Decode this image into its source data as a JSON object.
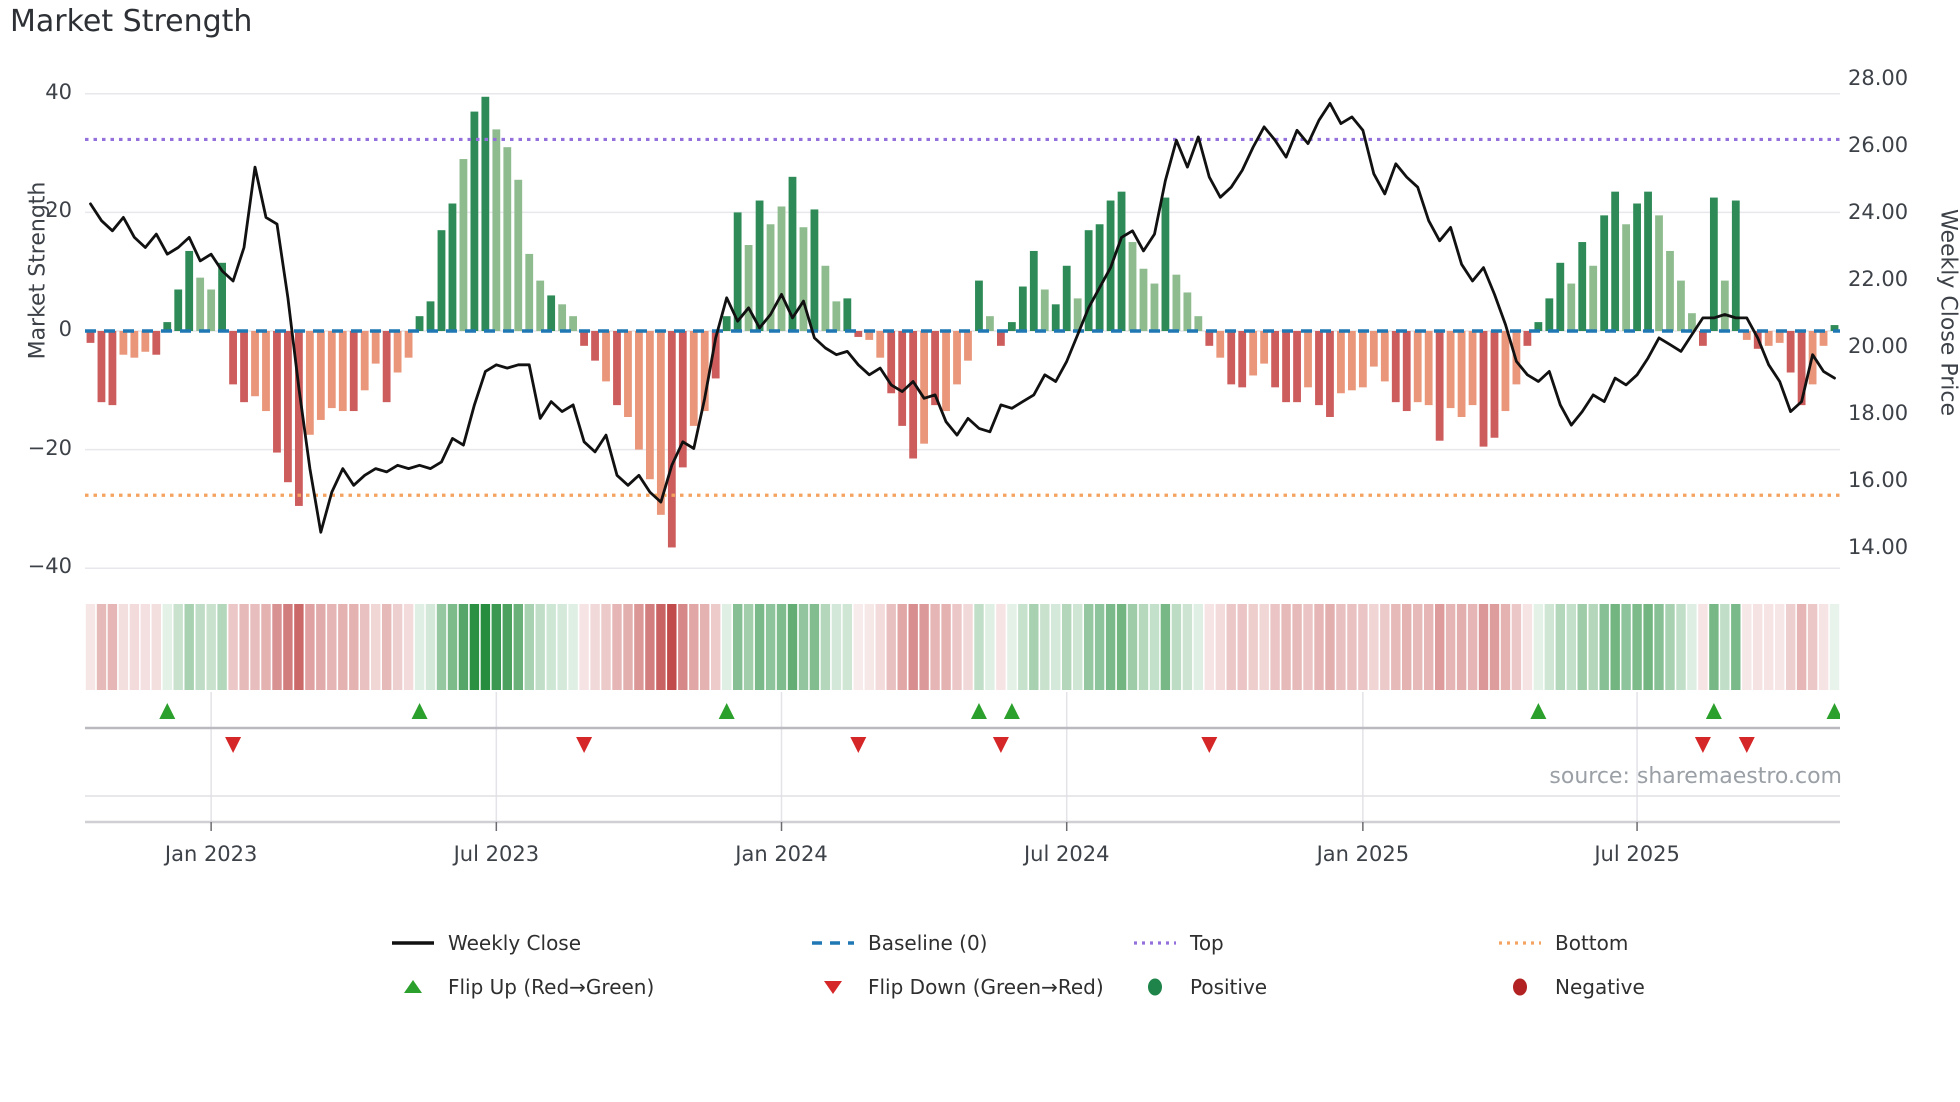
{
  "title": "Market Strength",
  "source_note": "source: sharemaestro.com",
  "y_axis_left": {
    "label": "Market Strength",
    "ticks": [
      "40",
      "20",
      "0",
      "−20",
      "−40"
    ]
  },
  "y_axis_right": {
    "label": "Weekly Close Price",
    "ticks": [
      "28.00",
      "26.00",
      "24.00",
      "22.00",
      "20.00",
      "18.00",
      "16.00",
      "14.00"
    ]
  },
  "x_axis": {
    "ticks": [
      {
        "label": "Jan 2023",
        "week": 11
      },
      {
        "label": "Jul 2023",
        "week": 37
      },
      {
        "label": "Jan 2024",
        "week": 63
      },
      {
        "label": "Jul 2024",
        "week": 89
      },
      {
        "label": "Jan 2025",
        "week": 116
      },
      {
        "label": "Jul 2025",
        "week": 141
      }
    ]
  },
  "colors": {
    "bar_pos_strong": "#2e8b57",
    "bar_pos_weak": "#8fbc8f",
    "bar_neg_strong": "#cd5c5c",
    "bar_neg_weak": "#e9967a",
    "price_line": "#111111",
    "baseline": "#1f77b4",
    "top_line": "#9370db",
    "bottom_line": "#f4a460",
    "flip_up": "#2ca02c",
    "flip_down": "#d62728",
    "positive_dot": "#1e8449",
    "negative_dot": "#b22222",
    "heat_pos_rgb": "34,139,58",
    "heat_neg_rgb": "189,63,63",
    "grid": "#e7e7ec",
    "spine": "#cfcfd4"
  },
  "legend": [
    {
      "label": "Weekly Close",
      "swatch": "line",
      "color": "#111111"
    },
    {
      "label": "Baseline (0)",
      "swatch": "dashed-line",
      "color": "#1f77b4"
    },
    {
      "label": "Top",
      "swatch": "dotted-line",
      "color": "#9370db"
    },
    {
      "label": "Bottom",
      "swatch": "dotted-line",
      "color": "#f4a460"
    },
    {
      "label": "Flip Up (Red→Green)",
      "swatch": "triangle-up",
      "color": "#2ca02c"
    },
    {
      "label": "Flip Down (Green→Red)",
      "swatch": "triangle-down",
      "color": "#d62728"
    },
    {
      "label": "Positive",
      "swatch": "circle",
      "color": "#1e8449"
    },
    {
      "label": "Negative",
      "swatch": "circle",
      "color": "#b22222"
    }
  ],
  "chart_data": {
    "type": "bar+line",
    "title": "Market Strength",
    "ylabel_left": "Market Strength",
    "ylabel_right": "Weekly Close Price",
    "ylim_left": [
      -40,
      40
    ],
    "ylim_right": [
      14,
      28
    ],
    "baseline": 0,
    "top_level": 32.3,
    "bottom_level": -27.7,
    "flip_up_weeks": [
      7,
      30,
      58,
      81,
      84,
      132,
      148,
      159
    ],
    "flip_down_weeks": [
      13,
      45,
      70,
      83,
      102,
      147,
      151
    ],
    "weekly_bars": [
      [
        -2,
        "d"
      ],
      [
        -12,
        "d"
      ],
      [
        -12.5,
        "d"
      ],
      [
        -4,
        "l"
      ],
      [
        -4.5,
        "l"
      ],
      [
        -3.5,
        "l"
      ],
      [
        -4,
        "d"
      ],
      [
        1.5,
        "d"
      ],
      [
        7,
        "d"
      ],
      [
        13.5,
        "d"
      ],
      [
        9,
        "l"
      ],
      [
        7,
        "l"
      ],
      [
        11.5,
        "d"
      ],
      [
        -9,
        "d"
      ],
      [
        -12,
        "d"
      ],
      [
        -11,
        "l"
      ],
      [
        -13.5,
        "l"
      ],
      [
        -20.5,
        "d"
      ],
      [
        -25.5,
        "d"
      ],
      [
        -29.5,
        "d"
      ],
      [
        -17.5,
        "l"
      ],
      [
        -15,
        "l"
      ],
      [
        -13,
        "l"
      ],
      [
        -13.5,
        "l"
      ],
      [
        -13.5,
        "d"
      ],
      [
        -10,
        "l"
      ],
      [
        -5.5,
        "l"
      ],
      [
        -12,
        "d"
      ],
      [
        -7,
        "l"
      ],
      [
        -4.5,
        "l"
      ],
      [
        2.5,
        "d"
      ],
      [
        5,
        "d"
      ],
      [
        17,
        "d"
      ],
      [
        21.5,
        "d"
      ],
      [
        29,
        "l"
      ],
      [
        37,
        "d"
      ],
      [
        39.5,
        "d"
      ],
      [
        34,
        "l"
      ],
      [
        31,
        "l"
      ],
      [
        25.5,
        "l"
      ],
      [
        13,
        "l"
      ],
      [
        8.5,
        "l"
      ],
      [
        6,
        "d"
      ],
      [
        4.5,
        "l"
      ],
      [
        2.5,
        "l"
      ],
      [
        -2.5,
        "d"
      ],
      [
        -5,
        "d"
      ],
      [
        -8.5,
        "l"
      ],
      [
        -12.5,
        "d"
      ],
      [
        -14.5,
        "l"
      ],
      [
        -20,
        "l"
      ],
      [
        -25,
        "l"
      ],
      [
        -31,
        "l"
      ],
      [
        -36.5,
        "d"
      ],
      [
        -23,
        "d"
      ],
      [
        -16,
        "l"
      ],
      [
        -13.5,
        "l"
      ],
      [
        -8,
        "d"
      ],
      [
        2.5,
        "d"
      ],
      [
        20,
        "d"
      ],
      [
        14.5,
        "l"
      ],
      [
        22,
        "d"
      ],
      [
        18,
        "l"
      ],
      [
        21,
        "l"
      ],
      [
        26,
        "d"
      ],
      [
        17.5,
        "l"
      ],
      [
        20.5,
        "d"
      ],
      [
        11,
        "l"
      ],
      [
        5,
        "l"
      ],
      [
        5.5,
        "d"
      ],
      [
        -1,
        "d"
      ],
      [
        -1.5,
        "l"
      ],
      [
        -4.5,
        "l"
      ],
      [
        -10.5,
        "d"
      ],
      [
        -16,
        "d"
      ],
      [
        -21.5,
        "d"
      ],
      [
        -19,
        "l"
      ],
      [
        -12.5,
        "d"
      ],
      [
        -13.5,
        "l"
      ],
      [
        -9,
        "l"
      ],
      [
        -5,
        "l"
      ],
      [
        8.5,
        "d"
      ],
      [
        2.5,
        "l"
      ],
      [
        -2.5,
        "d"
      ],
      [
        1.5,
        "d"
      ],
      [
        7.5,
        "d"
      ],
      [
        13.5,
        "d"
      ],
      [
        7,
        "l"
      ],
      [
        4.5,
        "d"
      ],
      [
        11,
        "d"
      ],
      [
        5.5,
        "l"
      ],
      [
        17,
        "d"
      ],
      [
        18,
        "d"
      ],
      [
        22,
        "d"
      ],
      [
        23.5,
        "d"
      ],
      [
        15,
        "l"
      ],
      [
        10.5,
        "l"
      ],
      [
        8,
        "l"
      ],
      [
        22.5,
        "d"
      ],
      [
        9.5,
        "l"
      ],
      [
        6.5,
        "l"
      ],
      [
        2.5,
        "l"
      ],
      [
        -2.5,
        "d"
      ],
      [
        -4.5,
        "l"
      ],
      [
        -9,
        "d"
      ],
      [
        -9.5,
        "d"
      ],
      [
        -7.5,
        "l"
      ],
      [
        -5.5,
        "l"
      ],
      [
        -9.5,
        "d"
      ],
      [
        -12,
        "d"
      ],
      [
        -12,
        "d"
      ],
      [
        -9.5,
        "l"
      ],
      [
        -12.5,
        "d"
      ],
      [
        -14.5,
        "d"
      ],
      [
        -10.5,
        "l"
      ],
      [
        -10,
        "l"
      ],
      [
        -9.5,
        "l"
      ],
      [
        -6,
        "l"
      ],
      [
        -8.5,
        "l"
      ],
      [
        -12,
        "d"
      ],
      [
        -13.5,
        "d"
      ],
      [
        -12,
        "l"
      ],
      [
        -12.5,
        "l"
      ],
      [
        -18.5,
        "d"
      ],
      [
        -13,
        "l"
      ],
      [
        -14.5,
        "l"
      ],
      [
        -12.5,
        "l"
      ],
      [
        -19.5,
        "d"
      ],
      [
        -18,
        "d"
      ],
      [
        -13.5,
        "l"
      ],
      [
        -9,
        "l"
      ],
      [
        -2.5,
        "d"
      ],
      [
        1.5,
        "d"
      ],
      [
        5.5,
        "d"
      ],
      [
        11.5,
        "d"
      ],
      [
        8,
        "l"
      ],
      [
        15,
        "d"
      ],
      [
        11,
        "l"
      ],
      [
        19.5,
        "d"
      ],
      [
        23.5,
        "d"
      ],
      [
        18,
        "l"
      ],
      [
        21.5,
        "d"
      ],
      [
        23.5,
        "d"
      ],
      [
        19.5,
        "l"
      ],
      [
        13.5,
        "l"
      ],
      [
        8.5,
        "l"
      ],
      [
        3,
        "l"
      ],
      [
        -2.5,
        "d"
      ],
      [
        22.5,
        "d"
      ],
      [
        8.5,
        "l"
      ],
      [
        22,
        "d"
      ],
      [
        -1.5,
        "l"
      ],
      [
        -3,
        "d"
      ],
      [
        -2.5,
        "l"
      ],
      [
        -2,
        "l"
      ],
      [
        -7,
        "d"
      ],
      [
        -12.5,
        "d"
      ],
      [
        -9,
        "l"
      ],
      [
        -2.5,
        "l"
      ],
      [
        1,
        "d"
      ]
    ],
    "weekly_close": [
      24.3,
      23.8,
      23.5,
      23.9,
      23.3,
      23.0,
      23.4,
      22.8,
      23.0,
      23.3,
      22.6,
      22.8,
      22.3,
      22.0,
      23.0,
      25.4,
      23.9,
      23.7,
      21.5,
      18.8,
      16.4,
      14.5,
      15.7,
      16.4,
      15.9,
      16.2,
      16.4,
      16.3,
      16.5,
      16.4,
      16.5,
      16.4,
      16.6,
      17.3,
      17.1,
      18.3,
      19.3,
      19.5,
      19.4,
      19.5,
      19.5,
      17.9,
      18.4,
      18.1,
      18.3,
      17.2,
      16.9,
      17.4,
      16.2,
      15.9,
      16.2,
      15.7,
      15.4,
      16.5,
      17.2,
      17.0,
      18.5,
      20.3,
      21.5,
      20.8,
      21.2,
      20.6,
      21.0,
      21.6,
      20.9,
      21.4,
      20.3,
      20.0,
      19.8,
      19.9,
      19.5,
      19.2,
      19.4,
      18.9,
      18.7,
      19.0,
      18.5,
      18.6,
      17.8,
      17.4,
      17.9,
      17.6,
      17.5,
      18.3,
      18.2,
      18.4,
      18.6,
      19.2,
      19.0,
      19.6,
      20.4,
      21.2,
      21.8,
      22.4,
      23.3,
      23.5,
      22.9,
      23.4,
      25.0,
      26.2,
      25.4,
      26.3,
      25.1,
      24.5,
      24.8,
      25.3,
      26.0,
      26.6,
      26.2,
      25.7,
      26.5,
      26.1,
      26.8,
      27.3,
      26.7,
      26.9,
      26.5,
      25.2,
      24.6,
      25.5,
      25.1,
      24.8,
      23.8,
      23.2,
      23.6,
      22.5,
      22.0,
      22.4,
      21.6,
      20.7,
      19.6,
      19.2,
      19.0,
      19.3,
      18.3,
      17.7,
      18.1,
      18.6,
      18.4,
      19.1,
      18.9,
      19.2,
      19.7,
      20.3,
      20.1,
      19.9,
      20.4,
      20.9,
      20.9,
      21.0,
      20.9,
      20.9,
      20.3,
      19.5,
      19.0,
      18.1,
      18.4,
      19.8,
      19.3,
      19.1
    ]
  }
}
